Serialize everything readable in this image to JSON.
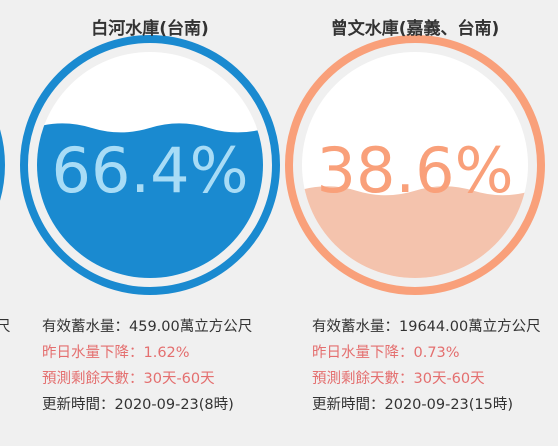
{
  "partial_text": "尺",
  "cards": [
    {
      "title": "白河水庫(台南)",
      "level": {
        "value": 66.4,
        "label": "66.4%"
      },
      "lines": [
        "有效蓄水量：459.00萬立方公尺",
        "昨日水量下降：1.62%",
        "預測剩餘天數：30天-60天",
        "更新時間：2020-09-23(8時)"
      ]
    },
    {
      "title": "曾文水庫(嘉義、台南)",
      "level": {
        "value": 38.6,
        "label": "38.6%"
      },
      "lines": [
        "有效蓄水量：19644.00萬立方公尺",
        "昨日水量下降：0.73%",
        "預測剩餘天數：30天-60天",
        "更新時間：2020-09-23(15時)"
      ]
    }
  ]
}
